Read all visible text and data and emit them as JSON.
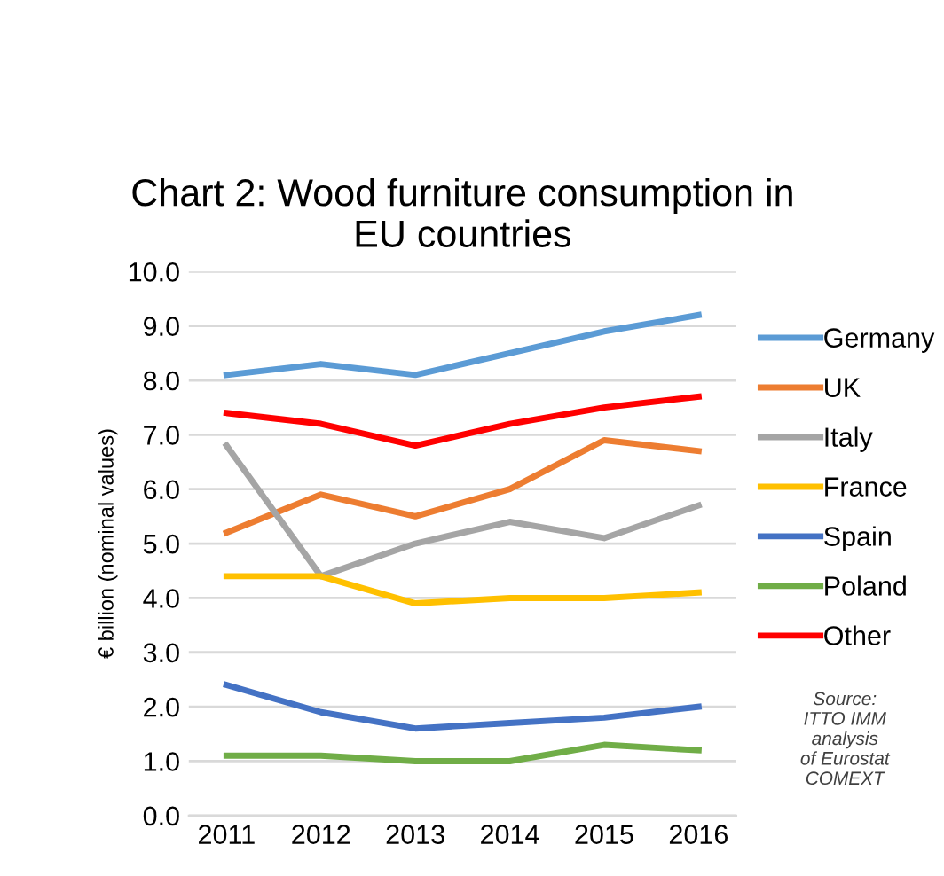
{
  "chart_data": {
    "type": "line",
    "title": "Chart 2: Wood furniture consumption in\nEU countries",
    "ylabel": "€ billion (nominal values)",
    "categories": [
      "2011",
      "2012",
      "2013",
      "2014",
      "2015",
      "2016"
    ],
    "series": [
      {
        "name": "Germany",
        "color": "#5b9bd5",
        "values": [
          8.1,
          8.3,
          8.1,
          8.5,
          8.9,
          9.2
        ]
      },
      {
        "name": "UK",
        "color": "#ed7d31",
        "values": [
          5.2,
          5.9,
          5.5,
          6.0,
          6.9,
          6.7
        ]
      },
      {
        "name": "Italy",
        "color": "#a5a5a5",
        "values": [
          6.8,
          4.4,
          5.0,
          5.4,
          5.1,
          5.7
        ]
      },
      {
        "name": "France",
        "color": "#ffc000",
        "values": [
          4.4,
          4.4,
          3.9,
          4.0,
          4.0,
          4.1
        ]
      },
      {
        "name": "Spain",
        "color": "#4472c4",
        "values": [
          2.4,
          1.9,
          1.6,
          1.7,
          1.8,
          2.0
        ]
      },
      {
        "name": "Poland",
        "color": "#70ad47",
        "values": [
          1.1,
          1.1,
          1.0,
          1.0,
          1.3,
          1.2
        ]
      },
      {
        "name": "Other",
        "color": "#ff0000",
        "values": [
          7.4,
          7.2,
          6.8,
          7.2,
          7.5,
          7.7
        ]
      }
    ],
    "ylim": [
      0,
      10
    ],
    "yticks": [
      {
        "value": 0,
        "label": "0.0"
      },
      {
        "value": 1,
        "label": "1.0"
      },
      {
        "value": 2,
        "label": "2.0"
      },
      {
        "value": 3,
        "label": "3.0"
      },
      {
        "value": 4,
        "label": "4.0"
      },
      {
        "value": 5,
        "label": "5.0"
      },
      {
        "value": 6,
        "label": "6.0"
      },
      {
        "value": 7,
        "label": "7.0"
      },
      {
        "value": 8,
        "label": "8.0"
      },
      {
        "value": 9,
        "label": "9.0"
      },
      {
        "value": 10,
        "label": "10.0"
      }
    ],
    "grid": "y",
    "legend": "right",
    "marker": "none",
    "line_style": "solid",
    "annotations": [
      "Source:\nITTO IMM\nanalysis\nof Eurostat\nCOMEXT"
    ]
  }
}
